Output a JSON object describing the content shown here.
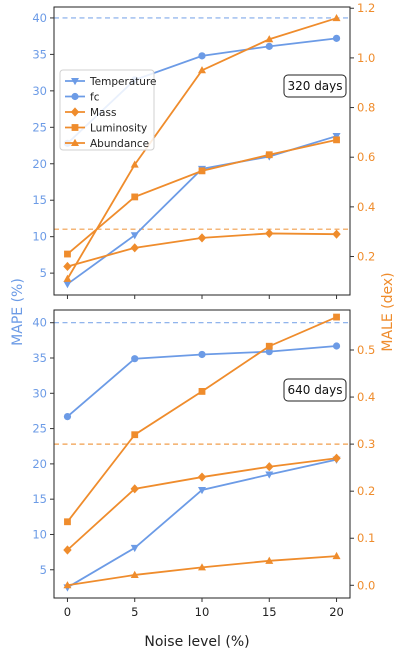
{
  "chart_data": {
    "type": "line",
    "x": [
      0,
      5,
      10,
      15,
      20
    ],
    "xlabel": "Noise level (%)",
    "ylabel_left": "MAPE (%)",
    "ylabel_right": "MALE (dex)",
    "colors": {
      "left": "#6c9be6",
      "right": "#ef8c2c"
    },
    "legend": {
      "placement": "upper-left of top panel",
      "entries": [
        {
          "name": "Temperature",
          "color": "#6c9be6",
          "marker": "triangle-down"
        },
        {
          "name": "fc",
          "color": "#6c9be6",
          "marker": "circle"
        },
        {
          "name": "Mass",
          "color": "#ef8c2c",
          "marker": "diamond"
        },
        {
          "name": "Luminosity",
          "color": "#ef8c2c",
          "marker": "square"
        },
        {
          "name": "Abundance",
          "color": "#ef8c2c",
          "marker": "triangle-up"
        }
      ]
    },
    "panels": [
      {
        "annotation": "320 days",
        "left_ylim": [
          2,
          41.5
        ],
        "left_ticks": [
          5,
          10,
          15,
          20,
          25,
          30,
          35,
          40
        ],
        "right_ylim": [
          0.045,
          1.205
        ],
        "right_ticks": [
          0.2,
          0.4,
          0.6,
          0.8,
          1.0,
          1.2
        ],
        "left_hline": 40,
        "right_hline": 0.31,
        "series": [
          {
            "name": "Temperature",
            "axis": "left",
            "marker": "triangle-down",
            "values": [
              3.5,
              10.2,
              19.3,
              21.0,
              23.8
            ]
          },
          {
            "name": "fc",
            "axis": "left",
            "marker": "circle",
            "values": [
              22.8,
              31.5,
              34.8,
              36.1,
              37.2
            ]
          },
          {
            "name": "Mass",
            "axis": "right",
            "marker": "diamond",
            "values": [
              0.16,
              0.235,
              0.275,
              0.293,
              0.29
            ]
          },
          {
            "name": "Luminosity",
            "axis": "right",
            "marker": "square",
            "values": [
              0.21,
              0.44,
              0.545,
              0.61,
              0.67
            ]
          },
          {
            "name": "Abundance",
            "axis": "right",
            "marker": "triangle-up",
            "values": [
              0.11,
              0.57,
              0.95,
              1.075,
              1.16
            ]
          }
        ]
      },
      {
        "annotation": "640 days",
        "left_ylim": [
          1.0,
          41.8
        ],
        "left_ticks": [
          5,
          10,
          15,
          20,
          25,
          30,
          35,
          40
        ],
        "right_ylim": [
          -0.027,
          0.585
        ],
        "right_ticks": [
          0.0,
          0.1,
          0.2,
          0.3,
          0.4,
          0.5
        ],
        "left_hline": 40,
        "right_hline": 0.3,
        "series": [
          {
            "name": "Temperature",
            "axis": "left",
            "marker": "triangle-down",
            "values": [
              2.5,
              8.1,
              16.3,
              18.5,
              20.6
            ]
          },
          {
            "name": "fc",
            "axis": "left",
            "marker": "circle",
            "values": [
              26.7,
              34.9,
              35.5,
              35.9,
              36.7
            ]
          },
          {
            "name": "Mass",
            "axis": "right",
            "marker": "diamond",
            "values": [
              0.075,
              0.205,
              0.23,
              0.252,
              0.27
            ]
          },
          {
            "name": "Luminosity",
            "axis": "right",
            "marker": "square",
            "values": [
              0.135,
              0.32,
              0.412,
              0.508,
              0.57
            ]
          },
          {
            "name": "Abundance",
            "axis": "right",
            "marker": "triangle-up",
            "values": [
              0.0,
              0.022,
              0.038,
              0.052,
              0.062
            ]
          }
        ]
      }
    ]
  }
}
